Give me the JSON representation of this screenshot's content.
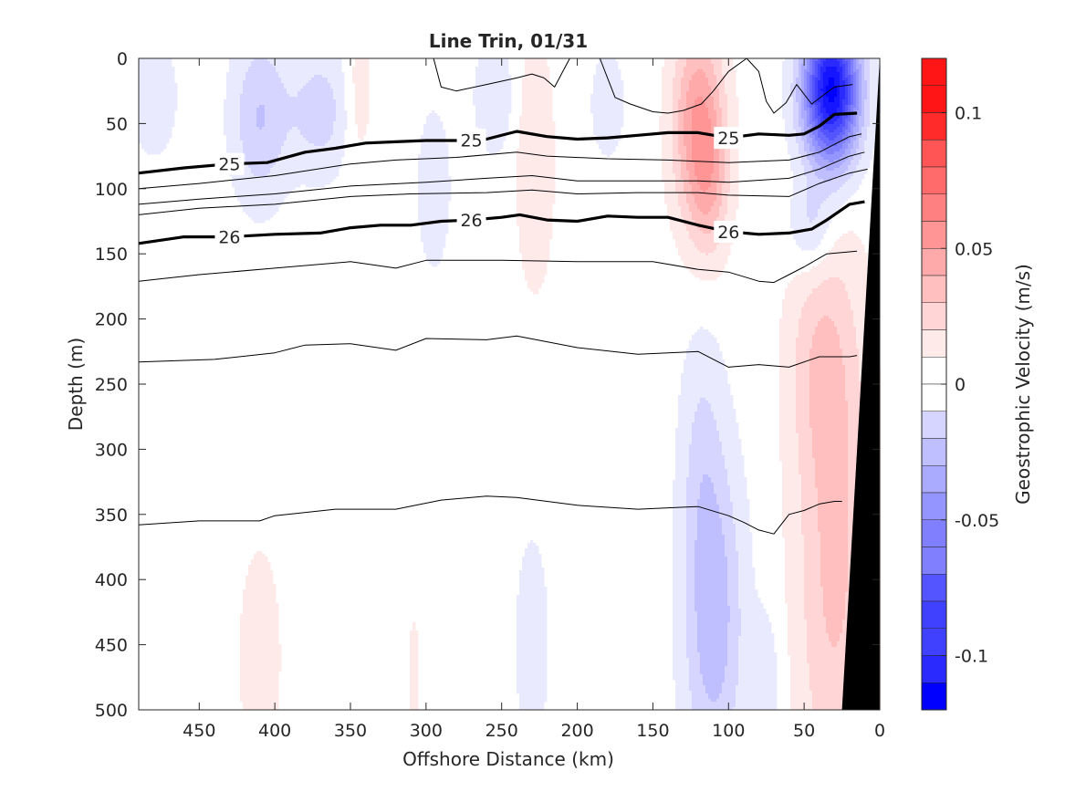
{
  "chart_data": {
    "type": "heatmap",
    "title": "Line Trin, 01/31",
    "xlabel": "Offshore Distance (km)",
    "ylabel": "Depth (m)",
    "colorbar_label": "Geostrophic Velocity (m/s)",
    "xlim": [
      490,
      0
    ],
    "ylim": [
      0,
      500
    ],
    "x_ticks": [
      450,
      400,
      350,
      300,
      250,
      200,
      150,
      100,
      50,
      0
    ],
    "y_ticks": [
      0,
      50,
      100,
      150,
      200,
      250,
      300,
      350,
      400,
      450,
      500
    ],
    "clim": [
      -0.12,
      0.12
    ],
    "colorbar_ticks": [
      0.1,
      0.05,
      0,
      -0.05,
      -0.1
    ],
    "colorbar_tick_labels": [
      "0.1",
      "0.05",
      "0",
      "-0.05",
      "-0.1"
    ],
    "colorbar_step": 0.01,
    "colors": {
      "positive": "#ff0000",
      "negative": "#0000ff",
      "zero": "#ffffff",
      "isopycnal": "#000000",
      "bathymetry": "#000000"
    },
    "velocity_features": [
      {
        "x": 120,
        "z": 50,
        "sx": 12,
        "sz": 55,
        "amp": 0.045
      },
      {
        "x": 112,
        "z": 100,
        "sx": 9,
        "sz": 40,
        "amp": 0.02
      },
      {
        "x": 32,
        "z": 25,
        "sx": 13,
        "sz": 40,
        "amp": -0.12
      },
      {
        "x": 45,
        "z": 130,
        "sx": 10,
        "sz": 25,
        "amp": -0.02
      },
      {
        "x": 410,
        "z": 45,
        "sx": 13,
        "sz": 45,
        "amp": -0.025
      },
      {
        "x": 370,
        "z": 40,
        "sx": 15,
        "sz": 35,
        "amp": -0.02
      },
      {
        "x": 480,
        "z": 30,
        "sx": 10,
        "sz": 30,
        "amp": -0.015
      },
      {
        "x": 345,
        "z": 30,
        "sx": 7,
        "sz": 40,
        "amp": 0.012
      },
      {
        "x": 255,
        "z": 30,
        "sx": 9,
        "sz": 30,
        "amp": -0.015
      },
      {
        "x": 228,
        "z": 80,
        "sx": 9,
        "sz": 70,
        "amp": 0.014
      },
      {
        "x": 180,
        "z": 35,
        "sx": 8,
        "sz": 30,
        "amp": -0.012
      },
      {
        "x": 295,
        "z": 100,
        "sx": 8,
        "sz": 45,
        "amp": -0.012
      },
      {
        "x": 30,
        "z": 380,
        "sx": 18,
        "sz": 150,
        "amp": 0.028
      },
      {
        "x": 40,
        "z": 230,
        "sx": 15,
        "sz": 60,
        "amp": 0.015
      },
      {
        "x": 110,
        "z": 430,
        "sx": 14,
        "sz": 90,
        "amp": -0.032
      },
      {
        "x": 118,
        "z": 300,
        "sx": 10,
        "sz": 70,
        "amp": -0.012
      },
      {
        "x": 410,
        "z": 460,
        "sx": 9,
        "sz": 55,
        "amp": 0.015
      },
      {
        "x": 230,
        "z": 450,
        "sx": 8,
        "sz": 60,
        "amp": -0.012
      },
      {
        "x": 75,
        "z": 480,
        "sx": 7,
        "sz": 40,
        "amp": -0.012
      },
      {
        "x": 308,
        "z": 480,
        "sx": 3,
        "sz": 40,
        "amp": 0.01
      }
    ],
    "isopycnals": [
      {
        "label": "",
        "bold": false,
        "x": [
          295,
          290,
          280,
          260,
          240,
          230,
          222,
          215,
          205
        ],
        "depth": [
          0,
          22,
          25,
          20,
          15,
          12,
          15,
          22,
          0
        ]
      },
      {
        "label": "",
        "bold": false,
        "x": [
          185,
          180,
          175,
          165,
          150,
          140,
          130,
          118,
          110,
          100,
          88,
          80,
          75,
          70,
          62,
          55,
          45,
          30,
          18
        ],
        "depth": [
          0,
          15,
          30,
          35,
          41,
          42,
          40,
          35,
          25,
          10,
          0,
          10,
          33,
          42,
          34,
          20,
          35,
          22,
          20
        ]
      },
      {
        "label": "25",
        "bold": true,
        "x": [
          490,
          460,
          430,
          405,
          380,
          360,
          340,
          320,
          300,
          280,
          260,
          240,
          220,
          200,
          180,
          160,
          140,
          120,
          100,
          80,
          60,
          50,
          40,
          30,
          15
        ],
        "depth": [
          88,
          84,
          81,
          80,
          72,
          69,
          65,
          64,
          63,
          63,
          62,
          56,
          60,
          62,
          61,
          59,
          57,
          57,
          61,
          58,
          59,
          58,
          52,
          43,
          42
        ]
      },
      {
        "label": "",
        "bold": false,
        "x": [
          490,
          450,
          400,
          350,
          320,
          280,
          240,
          220,
          180,
          140,
          100,
          60,
          40,
          20,
          12
        ],
        "depth": [
          100,
          96,
          90,
          81,
          78,
          76,
          72,
          75,
          77,
          78,
          80,
          78,
          72,
          60,
          58
        ]
      },
      {
        "label": "",
        "bold": false,
        "x": [
          490,
          450,
          400,
          350,
          300,
          260,
          230,
          200,
          160,
          120,
          100,
          60,
          40,
          20,
          10
        ],
        "depth": [
          112,
          108,
          104,
          98,
          95,
          92,
          90,
          94,
          94,
          94,
          95,
          92,
          85,
          75,
          72
        ]
      },
      {
        "label": "",
        "bold": false,
        "x": [
          490,
          450,
          400,
          350,
          310,
          260,
          230,
          200,
          160,
          120,
          100,
          60,
          40,
          20,
          8
        ],
        "depth": [
          120,
          115,
          112,
          106,
          104,
          103,
          101,
          104,
          103,
          103,
          105,
          106,
          96,
          88,
          85
        ]
      },
      {
        "label": "26",
        "bold": true,
        "x": [
          490,
          460,
          430,
          400,
          370,
          350,
          330,
          310,
          290,
          270,
          250,
          238,
          220,
          200,
          180,
          160,
          140,
          120,
          100,
          80,
          60,
          45,
          35,
          20,
          10
        ],
        "depth": [
          142,
          137,
          137,
          135,
          134,
          130,
          128,
          128,
          125,
          124,
          122,
          120,
          124,
          125,
          121,
          122,
          122,
          128,
          133,
          135,
          134,
          131,
          124,
          112,
          110
        ]
      },
      {
        "label": "",
        "bold": false,
        "x": [
          490,
          450,
          400,
          350,
          320,
          300,
          250,
          200,
          150,
          120,
          100,
          80,
          70,
          60,
          50,
          35,
          15
        ],
        "depth": [
          171,
          166,
          161,
          156,
          161,
          155,
          155,
          156,
          156,
          162,
          164,
          171,
          172,
          166,
          160,
          150,
          148
        ]
      },
      {
        "label": "",
        "bold": false,
        "x": [
          490,
          440,
          400,
          380,
          350,
          320,
          300,
          260,
          240,
          200,
          160,
          120,
          100,
          80,
          60,
          40,
          20,
          15
        ],
        "depth": [
          233,
          231,
          226,
          220,
          219,
          224,
          215,
          216,
          213,
          222,
          227,
          225,
          237,
          235,
          237,
          229,
          229,
          228
        ]
      },
      {
        "label": "",
        "bold": false,
        "x": [
          490,
          450,
          410,
          400,
          360,
          320,
          290,
          260,
          240,
          200,
          160,
          120,
          100,
          90,
          80,
          70,
          60,
          50,
          40,
          30,
          25
        ],
        "depth": [
          358,
          355,
          355,
          351,
          346,
          346,
          339,
          336,
          337,
          343,
          346,
          344,
          351,
          356,
          362,
          365,
          350,
          347,
          342,
          340,
          340
        ]
      }
    ],
    "bathymetry": {
      "x": [
        0,
        0,
        25
      ],
      "depth": [
        0,
        500,
        500
      ]
    }
  }
}
